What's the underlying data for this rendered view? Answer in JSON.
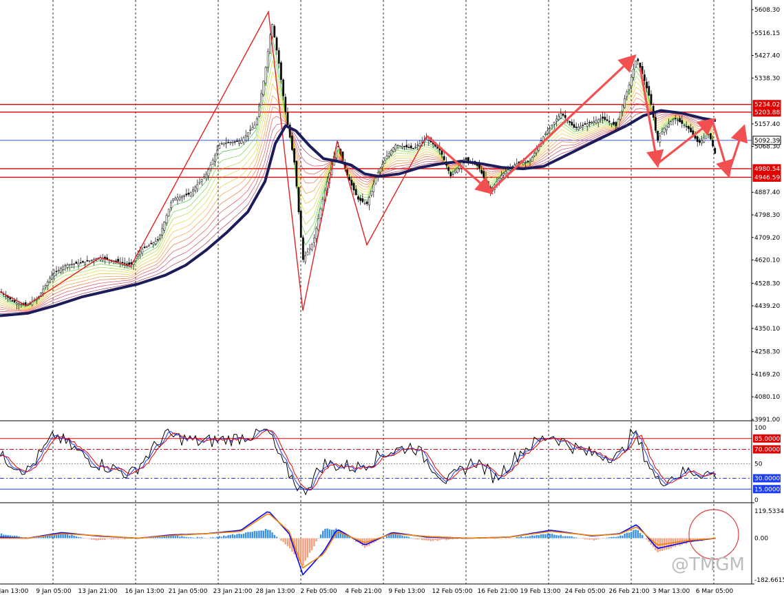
{
  "chart_data": {
    "type": "line",
    "subtype": "candlestick-with-indicators",
    "title": "",
    "x_tick_labels": [
      "Jan 13:00",
      "9 Jan 05:00",
      "13 Jan 21:00",
      "16 Jan 13:00",
      "21 Jan 05:00",
      "23 Jan 21:00",
      "28 Jan 13:00",
      "2 Feb 05:00",
      "4 Feb 21:00",
      "9 Feb 13:00",
      "12 Feb 05:00",
      "16 Feb 21:00",
      "19 Feb 13:00",
      "24 Feb 05:00",
      "26 Feb 21:00",
      "3 Mar 13:00",
      "6 Mar 05:00"
    ],
    "price_panel": {
      "y_tick_labels": [
        "5608.30",
        "5516.15",
        "5427.40",
        "5338.30",
        "5157.40",
        "5068.30",
        "4887.40",
        "4798.30",
        "4709.20",
        "4620.10",
        "4528.30",
        "4439.20",
        "4350.10",
        "4258.30",
        "4169.20",
        "4080.10",
        "3991.00"
      ],
      "ylim": [
        3991.0,
        5608.3
      ],
      "grid": "vertical dashed",
      "horizontal_levels": [
        {
          "value": 5234.02,
          "label": "5234.02",
          "color": "#e00000"
        },
        {
          "value": 5203.88,
          "label": "5203.88",
          "color": "#e00000"
        },
        {
          "value": 5092.39,
          "label": "5092.39",
          "color": "#1a3cff"
        },
        {
          "value": 4980.54,
          "label": "4980.54",
          "color": "#e00000"
        },
        {
          "value": 4946.59,
          "label": "4946.59",
          "color": "#e00000"
        }
      ],
      "price_path": [
        [
          0,
          4495
        ],
        [
          20,
          4455
        ],
        [
          38,
          4440
        ],
        [
          55,
          4470
        ],
        [
          75,
          4560
        ],
        [
          95,
          4600
        ],
        [
          120,
          4610
        ],
        [
          145,
          4630
        ],
        [
          170,
          4615
        ],
        [
          190,
          4600
        ],
        [
          205,
          4660
        ],
        [
          230,
          4700
        ],
        [
          250,
          4860
        ],
        [
          275,
          4880
        ],
        [
          300,
          4960
        ],
        [
          320,
          5080
        ],
        [
          350,
          5090
        ],
        [
          372,
          5160
        ],
        [
          385,
          5360
        ],
        [
          395,
          5560
        ],
        [
          405,
          5400
        ],
        [
          415,
          5200
        ],
        [
          428,
          5000
        ],
        [
          440,
          4620
        ],
        [
          455,
          4690
        ],
        [
          470,
          4870
        ],
        [
          490,
          5080
        ],
        [
          505,
          4950
        ],
        [
          520,
          4860
        ],
        [
          533,
          4840
        ],
        [
          548,
          4960
        ],
        [
          562,
          5030
        ],
        [
          575,
          5075
        ],
        [
          600,
          5060
        ],
        [
          620,
          5100
        ],
        [
          640,
          5050
        ],
        [
          655,
          4950
        ],
        [
          675,
          5020
        ],
        [
          695,
          4990
        ],
        [
          712,
          4890
        ],
        [
          730,
          4960
        ],
        [
          750,
          5000
        ],
        [
          770,
          5010
        ],
        [
          790,
          5110
        ],
        [
          815,
          5200
        ],
        [
          835,
          5140
        ],
        [
          855,
          5160
        ],
        [
          875,
          5180
        ],
        [
          895,
          5150
        ],
        [
          915,
          5320
        ],
        [
          925,
          5420
        ],
        [
          935,
          5340
        ],
        [
          945,
          5250
        ],
        [
          955,
          5090
        ],
        [
          965,
          5140
        ],
        [
          980,
          5180
        ],
        [
          1000,
          5140
        ],
        [
          1015,
          5080
        ],
        [
          1030,
          5120
        ],
        [
          1040,
          5030
        ]
      ],
      "moving_average": [
        [
          0,
          4400
        ],
        [
          40,
          4410
        ],
        [
          80,
          4440
        ],
        [
          120,
          4475
        ],
        [
          160,
          4500
        ],
        [
          200,
          4525
        ],
        [
          240,
          4560
        ],
        [
          270,
          4600
        ],
        [
          300,
          4660
        ],
        [
          330,
          4730
        ],
        [
          360,
          4810
        ],
        [
          385,
          4930
        ],
        [
          400,
          5080
        ],
        [
          415,
          5150
        ],
        [
          430,
          5130
        ],
        [
          450,
          5070
        ],
        [
          470,
          5020
        ],
        [
          490,
          5010
        ],
        [
          510,
          4995
        ],
        [
          530,
          4960
        ],
        [
          550,
          4950
        ],
        [
          580,
          4960
        ],
        [
          610,
          4985
        ],
        [
          640,
          5000
        ],
        [
          670,
          5010
        ],
        [
          700,
          5000
        ],
        [
          730,
          4985
        ],
        [
          760,
          4980
        ],
        [
          790,
          4990
        ],
        [
          820,
          5030
        ],
        [
          850,
          5070
        ],
        [
          880,
          5110
        ],
        [
          910,
          5150
        ],
        [
          935,
          5190
        ],
        [
          960,
          5210
        ],
        [
          990,
          5200
        ],
        [
          1020,
          5180
        ],
        [
          1040,
          5170
        ]
      ],
      "trend_arrows": [
        [
          [
            620,
            5110
          ],
          [
            712,
            4890
          ]
        ],
        [
          [
            712,
            4890
          ],
          [
            920,
            5420
          ]
        ],
        [
          [
            930,
            5380
          ],
          [
            955,
            5000
          ]
        ],
        [
          [
            955,
            5000
          ],
          [
            1035,
            5170
          ]
        ],
        [
          [
            1035,
            5170
          ],
          [
            1058,
            4960
          ]
        ],
        [
          [
            1058,
            4960
          ],
          [
            1080,
            5140
          ]
        ]
      ]
    },
    "stochastic_panel": {
      "y_tick_labels": [
        "100",
        "85.0000",
        "70.0000",
        "50",
        "30.0000",
        "15.0000",
        "0"
      ],
      "ylim": [
        0,
        100
      ],
      "levels": [
        {
          "value": 85,
          "label": "85.0000",
          "color": "#e00000"
        },
        {
          "value": 70,
          "label": "70.0000",
          "color": "#e00000"
        },
        {
          "value": 50,
          "label": "50",
          "color": "#999999"
        },
        {
          "value": 30,
          "label": "30.0000",
          "color": "#1a3cff"
        },
        {
          "value": 15,
          "label": "15.0000",
          "color": "#1a3cff"
        }
      ],
      "series": [
        {
          "color": "#000000",
          "values": [
            [
              0,
              60
            ],
            [
              40,
              40
            ],
            [
              80,
              90
            ],
            [
              130,
              55
            ],
            [
              190,
              35
            ],
            [
              240,
              90
            ],
            [
              290,
              80
            ],
            [
              340,
              85
            ],
            [
              390,
              95
            ],
            [
              410,
              50
            ],
            [
              440,
              10
            ],
            [
              470,
              50
            ],
            [
              520,
              45
            ],
            [
              560,
              65
            ],
            [
              600,
              75
            ],
            [
              650,
              25
            ],
            [
              690,
              55
            ],
            [
              720,
              30
            ],
            [
              760,
              70
            ],
            [
              800,
              90
            ],
            [
              850,
              65
            ],
            [
              900,
              60
            ],
            [
              920,
              95
            ],
            [
              955,
              25
            ],
            [
              1000,
              40
            ],
            [
              1040,
              35
            ]
          ]
        }
      ]
    },
    "macd_panel": {
      "y_tick_labels": [
        "119.5334",
        "0.00",
        "-182.6615"
      ],
      "ylim": [
        -182.6615,
        119.5334
      ],
      "series": [
        {
          "name": "",
          "color": "#0000ff",
          "values": [
            [
              0,
              5
            ],
            [
              40,
              0
            ],
            [
              90,
              25
            ],
            [
              140,
              10
            ],
            [
              200,
              0
            ],
            [
              250,
              15
            ],
            [
              300,
              20
            ],
            [
              350,
              35
            ],
            [
              390,
              120
            ],
            [
              420,
              20
            ],
            [
              440,
              -160
            ],
            [
              470,
              -60
            ],
            [
              490,
              40
            ],
            [
              530,
              -30
            ],
            [
              570,
              25
            ],
            [
              620,
              5
            ],
            [
              680,
              0
            ],
            [
              740,
              5
            ],
            [
              800,
              35
            ],
            [
              860,
              10
            ],
            [
              900,
              20
            ],
            [
              925,
              60
            ],
            [
              955,
              -45
            ],
            [
              1000,
              -15
            ],
            [
              1040,
              0
            ]
          ]
        },
        {
          "name": "",
          "color": "#f08000",
          "values": [
            [
              0,
              0
            ],
            [
              40,
              0
            ],
            [
              90,
              20
            ],
            [
              140,
              12
            ],
            [
              200,
              0
            ],
            [
              250,
              12
            ],
            [
              300,
              20
            ],
            [
              350,
              30
            ],
            [
              390,
              110
            ],
            [
              420,
              30
            ],
            [
              440,
              -130
            ],
            [
              470,
              -70
            ],
            [
              490,
              30
            ],
            [
              530,
              -20
            ],
            [
              570,
              20
            ],
            [
              620,
              8
            ],
            [
              680,
              0
            ],
            [
              740,
              5
            ],
            [
              800,
              30
            ],
            [
              860,
              12
            ],
            [
              900,
              18
            ],
            [
              925,
              50
            ],
            [
              955,
              -30
            ],
            [
              1000,
              -10
            ],
            [
              1040,
              0
            ]
          ]
        }
      ]
    },
    "watermark": "@TMGM"
  }
}
